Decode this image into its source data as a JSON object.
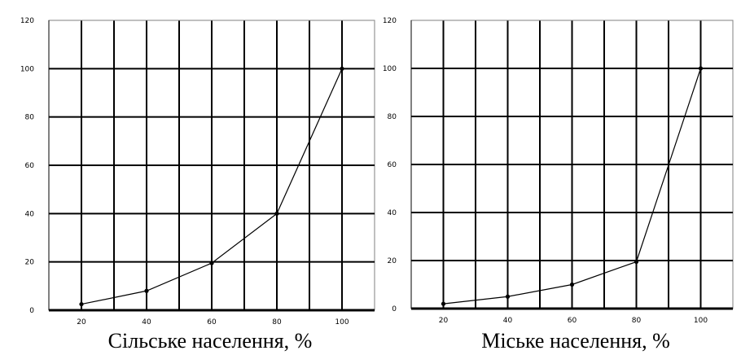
{
  "chart_data": [
    {
      "type": "line",
      "xlabel": "Сільське населення, %",
      "ylabel": "",
      "x": [
        20,
        40,
        60,
        80,
        100
      ],
      "xticks": [
        "20",
        "40",
        "60",
        "80",
        "100"
      ],
      "xlim": [
        10,
        110
      ],
      "ylim": [
        0,
        120
      ],
      "yticks": [
        "0",
        "20",
        "40",
        "60",
        "80",
        "100",
        "120"
      ],
      "grid": true,
      "series": [
        {
          "values": [
            2.5,
            8,
            19.5,
            40,
            100
          ]
        }
      ]
    },
    {
      "type": "line",
      "xlabel": "Міське населення, %",
      "ylabel": "",
      "x": [
        20,
        40,
        60,
        80,
        100
      ],
      "xticks": [
        "20",
        "40",
        "60",
        "80",
        "100"
      ],
      "xlim": [
        10,
        110
      ],
      "ylim": [
        0,
        120
      ],
      "yticks": [
        "0",
        "20",
        "40",
        "60",
        "80",
        "100",
        "120"
      ],
      "grid": true,
      "series": [
        {
          "values": [
            2,
            5,
            10,
            19.5,
            100
          ]
        }
      ]
    }
  ]
}
